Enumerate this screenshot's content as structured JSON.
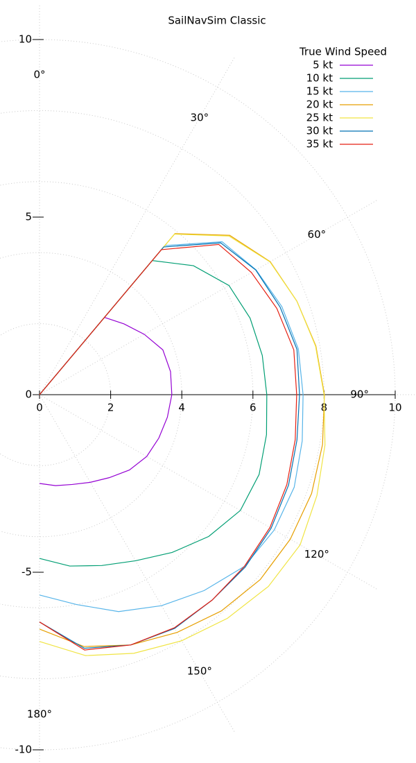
{
  "chart_data": {
    "type": "polar",
    "title": "SailNavSim Classic",
    "legend_title": "True Wind Speed",
    "legend_position": "top-right",
    "grid": true,
    "x": [
      0,
      40,
      50,
      60,
      70,
      80,
      90,
      100,
      110,
      120,
      130,
      140,
      150,
      160,
      170,
      180
    ],
    "xlim": [
      0,
      10
    ],
    "xticks": [
      0,
      2,
      4,
      6,
      8,
      10
    ],
    "ylim": [
      -10,
      10
    ],
    "yticks": [
      10,
      5,
      0,
      -5,
      -10
    ],
    "angle_ticks": [
      {
        "value": 0,
        "label": "0°"
      },
      {
        "value": 30,
        "label": "30°"
      },
      {
        "value": 60,
        "label": "60°"
      },
      {
        "value": 90,
        "label": "90°"
      },
      {
        "value": 120,
        "label": "120°"
      },
      {
        "value": 150,
        "label": "150°"
      },
      {
        "value": 180,
        "label": "180°"
      }
    ],
    "series": [
      {
        "name": "5 kt",
        "color": "#9400d3",
        "values": [
          0,
          2.84,
          3.1,
          3.4,
          3.69,
          3.74,
          3.72,
          3.65,
          3.57,
          3.48,
          3.3,
          3.05,
          2.85,
          2.69,
          2.6,
          2.5
        ]
      },
      {
        "name": "10 kt",
        "color": "#009e73",
        "values": [
          0,
          4.93,
          5.65,
          6.15,
          6.3,
          6.36,
          6.39,
          6.48,
          6.57,
          6.52,
          6.21,
          5.8,
          5.4,
          5.12,
          4.9,
          4.61
        ]
      },
      {
        "name": "15 kt",
        "color": "#56b4e9",
        "values": [
          0,
          5.48,
          6.7,
          7.03,
          7.25,
          7.39,
          7.41,
          7.5,
          7.62,
          7.62,
          7.52,
          7.2,
          6.86,
          6.5,
          6.0,
          5.64
        ]
      },
      {
        "name": "20 kt",
        "color": "#e69f00",
        "values": [
          0,
          5.92,
          6.98,
          7.49,
          7.7,
          7.89,
          8.01,
          8.08,
          8.14,
          8.14,
          8.1,
          7.95,
          7.73,
          7.5,
          7.2,
          6.6
        ]
      },
      {
        "name": "25 kt",
        "color": "#f0e442",
        "values": [
          0,
          5.9,
          6.95,
          7.48,
          7.7,
          7.88,
          8.0,
          8.15,
          8.3,
          8.46,
          8.4,
          8.22,
          8.0,
          7.75,
          7.46,
          6.95
        ]
      },
      {
        "name": "30 kt",
        "color": "#0072b2",
        "values": [
          0,
          5.43,
          6.65,
          7.02,
          7.2,
          7.35,
          7.31,
          7.35,
          7.45,
          7.52,
          7.55,
          7.55,
          7.6,
          7.5,
          7.25,
          6.4
        ]
      },
      {
        "name": "35 kt",
        "color": "#e51e10",
        "values": [
          0,
          5.33,
          6.58,
          6.88,
          7.1,
          7.26,
          7.23,
          7.3,
          7.4,
          7.48,
          7.52,
          7.55,
          7.58,
          7.5,
          7.3,
          6.4
        ]
      }
    ]
  }
}
